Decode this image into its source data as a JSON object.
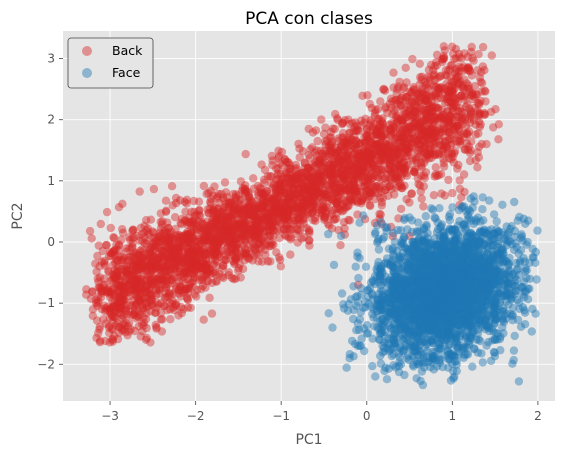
{
  "chart_data": {
    "type": "scatter",
    "title": "PCA con clases",
    "xlabel": "PC1",
    "ylabel": "PC2",
    "xlim": [
      -3.55,
      2.2
    ],
    "ylim": [
      -2.6,
      3.45
    ],
    "xticks": [
      -3,
      -2,
      -1,
      0,
      1,
      2
    ],
    "yticks": [
      -2,
      -1,
      0,
      1,
      2,
      3
    ],
    "grid": true,
    "legend_position": "top-left",
    "series": [
      {
        "name": "Back",
        "color": "#d62728",
        "alpha": 0.45,
        "distribution": "elongated diagonal band",
        "center": [
          -0.9,
          0.45
        ],
        "x_range": [
          -3.28,
          1.55
        ],
        "y_range": [
          -1.65,
          3.2
        ],
        "approx_points": 3500,
        "sample_points": [
          [
            -3.2,
            -1.1
          ],
          [
            -3.0,
            -0.9
          ],
          [
            -2.8,
            -0.5
          ],
          [
            -2.5,
            -0.7
          ],
          [
            -2.0,
            -0.3
          ],
          [
            -1.8,
            0.3
          ],
          [
            -1.3,
            0.6
          ],
          [
            -1.0,
            0.3
          ],
          [
            -0.6,
            1.3
          ],
          [
            -0.2,
            1.7
          ],
          [
            0.3,
            2.3
          ],
          [
            0.7,
            2.4
          ],
          [
            0.9,
            3.2
          ],
          [
            1.2,
            2.5
          ],
          [
            1.4,
            1.6
          ],
          [
            1.0,
            0.8
          ],
          [
            0.5,
            0.1
          ],
          [
            -0.1,
            -0.7
          ],
          [
            -1.5,
            -0.1
          ],
          [
            -2.2,
            -1.2
          ]
        ]
      },
      {
        "name": "Face",
        "color": "#1f77b4",
        "alpha": 0.45,
        "distribution": "compact blob",
        "center": [
          0.9,
          -0.75
        ],
        "x_range": [
          -0.55,
          2.0
        ],
        "y_range": [
          -2.35,
          0.8
        ],
        "approx_points": 3000,
        "sample_points": [
          [
            -0.4,
            -1.4
          ],
          [
            -0.2,
            -1.9
          ],
          [
            0.0,
            -1.5
          ],
          [
            0.1,
            -2.2
          ],
          [
            0.3,
            -0.3
          ],
          [
            0.5,
            0.4
          ],
          [
            0.8,
            -1.8
          ],
          [
            1.0,
            0.2
          ],
          [
            1.3,
            -0.5
          ],
          [
            1.5,
            -1.6
          ],
          [
            1.7,
            -0.9
          ],
          [
            1.95,
            -0.25
          ],
          [
            0.6,
            -1.1
          ],
          [
            1.1,
            -1.3
          ],
          [
            -0.3,
            0.1
          ],
          [
            0.4,
            -2.0
          ]
        ]
      }
    ]
  },
  "colors": {
    "plot_background": "#e5e5e5",
    "grid": "#ffffff",
    "back": "#d62728",
    "face": "#1f77b4"
  }
}
